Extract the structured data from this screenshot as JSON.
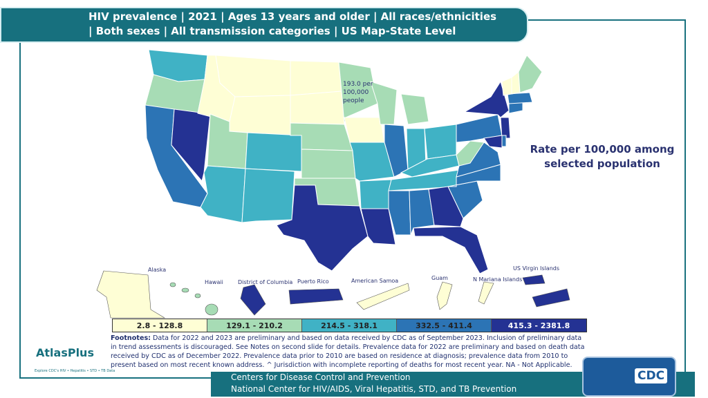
{
  "title": {
    "line1": "HIV prevalence | 2021 | Ages 13 years and older | All races/ethnicities",
    "line2": "| Both sexes | All transmission categories | US Map-State Level"
  },
  "map": {
    "annotation": {
      "line1": "193.0 per",
      "line2": "100,000",
      "line3": "people"
    },
    "rate_title": {
      "line1": "Rate per 100,000 among",
      "line2": "selected population"
    },
    "territory_labels": {
      "alaska": "Alaska",
      "hawaii": "Hawaii",
      "dc": "District of Columbia",
      "puerto_rico": "Puerto Rico",
      "american_samoa": "American Samoa",
      "guam": "Guam",
      "n_mariana": "N Mariana Islands",
      "usvi": "US Virgin Islands"
    }
  },
  "legend": [
    {
      "label": "2.8 - 128.8",
      "color": "#fefed5"
    },
    {
      "label": "129.1 - 210.2",
      "color": "#a7dcb5"
    },
    {
      "label": "214.5 - 318.1",
      "color": "#40b2c5"
    },
    {
      "label": "332.5 - 411.4",
      "color": "#2c74b5"
    },
    {
      "label": "415.3 - 2381.8",
      "color": "#243293"
    }
  ],
  "footnote": {
    "label": "Footnotes:",
    "text": " Data for 2022 and 2023 are preliminary and based on data received by CDC as of September 2023. Inclusion of preliminary data in trend assessments is discouraged. See Notes on second slide for details. Prevalence data for 2022 are preliminary and based on death data received by CDC as of December 2022. Prevalence data prior to 2010 are based on residence at diagnosis; prevalence data from 2010 to present based on most recent known address. ^ Jurisdiction with incomplete reporting of deaths for most recent year. NA - Not Applicable."
  },
  "footer": {
    "line1": "Centers for Disease Control and Prevention",
    "line2": "National Center for HIV/AIDS, Viral Hepatitis, STD, and TB Prevention"
  },
  "logos": {
    "atlas": "AtlasPlus",
    "atlas_sub": "Explore CDC's HIV • Hepatitis • STD • TB Data",
    "cdc": "CDC"
  }
}
